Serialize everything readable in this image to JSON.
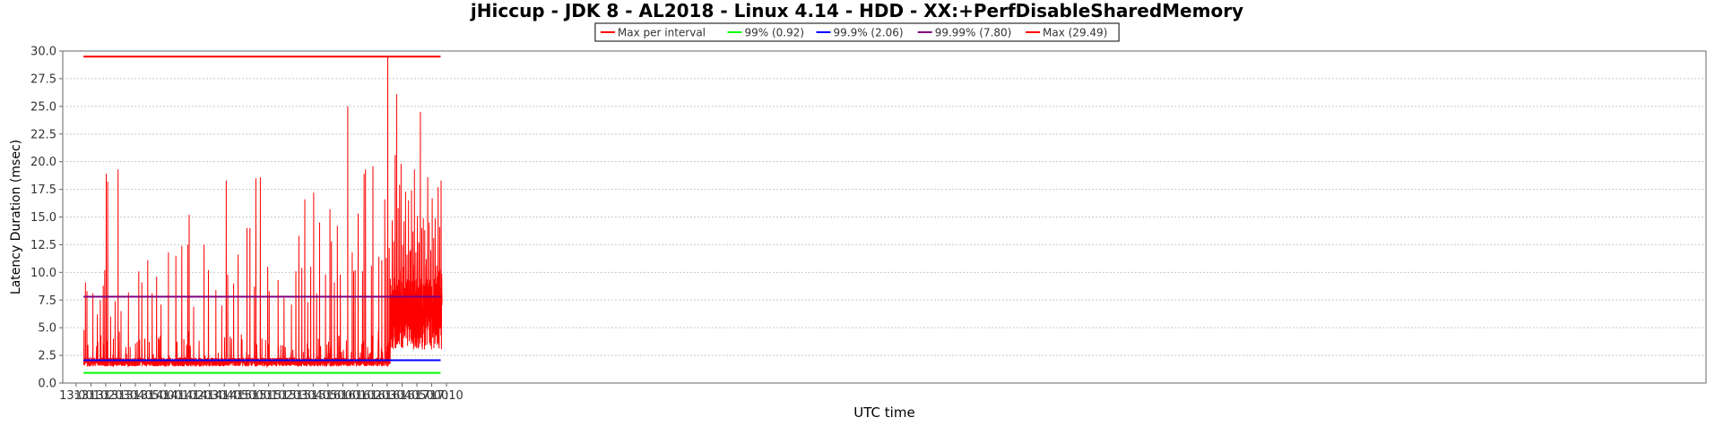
{
  "chart_data": {
    "type": "line",
    "title": "jHiccup - JDK 8 - AL2018 - Linux 4.14 - HDD - XX:+PerfDisableSharedMemory",
    "xlabel": "UTC time",
    "ylabel": "Latency Duration (msec)",
    "ylim": [
      0,
      30
    ],
    "y_ticks": [
      "0.0",
      "2.5",
      "5.0",
      "7.5",
      "10.0",
      "12.5",
      "15.0",
      "17.5",
      "20.0",
      "22.5",
      "25.0",
      "27.5",
      "30.0"
    ],
    "xlim_minutes": [
      -9,
      1100
    ],
    "x_ticks": [
      "13:00",
      "13:10",
      "13:20",
      "13:30",
      "13:40",
      "13:50",
      "14:00",
      "14:10",
      "14:20",
      "14:30",
      "14:40",
      "14:50",
      "15:00",
      "15:10",
      "15:20",
      "15:30",
      "15:40",
      "15:50",
      "16:00",
      "16:10",
      "16:20",
      "16:30",
      "16:40",
      "16:50",
      "17:00",
      "17:10"
    ],
    "x_range_time": [
      "13:05",
      "17:06"
    ],
    "grid": true,
    "legend_position": "top-center",
    "series": [
      {
        "name": "Max per interval",
        "color": "#ff0000",
        "kind": "interval_max",
        "baseline_range": [
          1.5,
          2.3
        ],
        "spikes": [
          [
            "13:05",
            4.8
          ],
          [
            "13:06",
            9.1
          ],
          [
            "13:07",
            8.3
          ],
          [
            "13:11",
            8.1
          ],
          [
            "13:14",
            6.2
          ],
          [
            "13:16",
            7.5
          ],
          [
            "13:18",
            8.8
          ],
          [
            "13:19",
            10.2
          ],
          [
            "13:20",
            18.9
          ],
          [
            "13:21",
            18.2
          ],
          [
            "13:23",
            6.0
          ],
          [
            "13:26",
            7.4
          ],
          [
            "13:28",
            19.3
          ],
          [
            "13:30",
            6.5
          ],
          [
            "13:35",
            8.2
          ],
          [
            "13:42",
            10.1
          ],
          [
            "13:44",
            9.1
          ],
          [
            "13:48",
            11.1
          ],
          [
            "13:51",
            8.1
          ],
          [
            "13:54",
            9.6
          ],
          [
            "13:57",
            7.1
          ],
          [
            "14:02",
            11.8
          ],
          [
            "14:07",
            11.5
          ],
          [
            "14:11",
            12.4
          ],
          [
            "14:15",
            12.5
          ],
          [
            "14:16",
            15.2
          ],
          [
            "14:19",
            6.9
          ],
          [
            "14:26",
            12.5
          ],
          [
            "14:29",
            10.2
          ],
          [
            "14:34",
            8.4
          ],
          [
            "14:38",
            7.0
          ],
          [
            "14:41",
            18.3
          ],
          [
            "14:42",
            9.8
          ],
          [
            "14:46",
            9.0
          ],
          [
            "14:49",
            11.6
          ],
          [
            "14:55",
            14.0
          ],
          [
            "14:57",
            14.0
          ],
          [
            "15:00",
            8.7
          ],
          [
            "15:01",
            18.5
          ],
          [
            "15:04",
            18.6
          ],
          [
            "15:09",
            10.5
          ],
          [
            "15:10",
            8.3
          ],
          [
            "15:16",
            9.3
          ],
          [
            "15:20",
            7.7
          ],
          [
            "15:25",
            7.1
          ],
          [
            "15:28",
            10.1
          ],
          [
            "15:30",
            13.3
          ],
          [
            "15:32",
            10.4
          ],
          [
            "15:34",
            16.6
          ],
          [
            "15:36",
            7.3
          ],
          [
            "15:38",
            10.5
          ],
          [
            "15:40",
            17.2
          ],
          [
            "15:42",
            8.1
          ],
          [
            "15:44",
            14.5
          ],
          [
            "15:48",
            9.8
          ],
          [
            "15:51",
            15.7
          ],
          [
            "15:52",
            12.8
          ],
          [
            "15:54",
            9.1
          ],
          [
            "15:56",
            14.2
          ],
          [
            "15:58",
            9.8
          ],
          [
            "16:03",
            25.0
          ],
          [
            "16:06",
            11.8
          ],
          [
            "16:07",
            10.1
          ],
          [
            "16:08",
            10.2
          ],
          [
            "16:10",
            15.3
          ],
          [
            "16:13",
            10.1
          ],
          [
            "16:14",
            18.9
          ],
          [
            "16:15",
            19.3
          ],
          [
            "16:19",
            10.6
          ],
          [
            "16:20",
            19.6
          ],
          [
            "16:24",
            11.4
          ],
          [
            "16:26",
            11.1
          ],
          [
            "16:28",
            16.6
          ],
          [
            "16:29",
            11.3
          ],
          [
            "16:30",
            29.5
          ],
          [
            "16:31",
            12.2
          ],
          [
            "16:33",
            14.7
          ],
          [
            "16:34",
            12.8
          ],
          [
            "16:35",
            20.6
          ],
          [
            "16:36",
            26.1
          ],
          [
            "16:37",
            15.8
          ],
          [
            "16:38",
            17.9
          ],
          [
            "16:39",
            19.8
          ],
          [
            "16:40",
            12.5
          ],
          [
            "16:41",
            14.6
          ],
          [
            "16:42",
            17.3
          ],
          [
            "16:43",
            11.6
          ],
          [
            "16:44",
            16.5
          ],
          [
            "16:45",
            11.9
          ],
          [
            "16:46",
            17.4
          ],
          [
            "16:47",
            13.7
          ],
          [
            "16:48",
            19.3
          ],
          [
            "16:49",
            11.8
          ],
          [
            "16:50",
            15.1
          ],
          [
            "16:51",
            12.7
          ],
          [
            "16:52",
            24.5
          ],
          [
            "16:53",
            14.0
          ],
          [
            "16:54",
            14.9
          ],
          [
            "16:55",
            13.8
          ],
          [
            "16:56",
            11.2
          ],
          [
            "16:57",
            18.6
          ],
          [
            "16:58",
            14.5
          ],
          [
            "16:59",
            12.0
          ],
          [
            "17:00",
            16.7
          ],
          [
            "17:01",
            13.1
          ],
          [
            "17:02",
            14.9
          ],
          [
            "17:03",
            10.6
          ],
          [
            "17:04",
            17.7
          ],
          [
            "17:05",
            14.1
          ],
          [
            "17:06",
            18.3
          ]
        ]
      },
      {
        "name": "99% (0.92)",
        "color": "#00ff00",
        "value": 0.92
      },
      {
        "name": "99.9% (2.06)",
        "color": "#0000ff",
        "value": 2.06
      },
      {
        "name": "99.99% (7.80)",
        "color": "#800080",
        "value": 7.8
      },
      {
        "name": "Max (29.49)",
        "color": "#ff0000",
        "value": 29.49
      }
    ]
  }
}
